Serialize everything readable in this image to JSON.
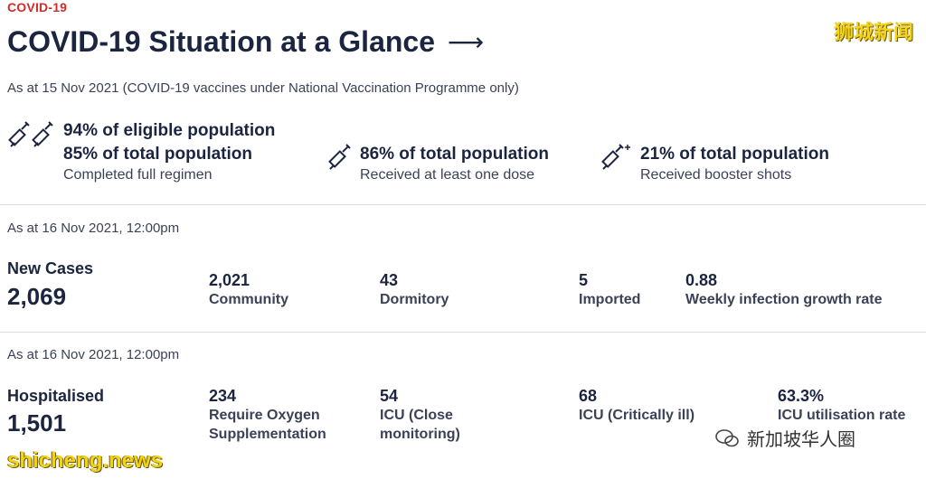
{
  "header": {
    "tag": "COVID-19",
    "title": "COVID-19 Situation at a Glance",
    "arrow": "⟶",
    "subtitle": "As at 15 Nov 2021 (COVID-19 vaccines under National Vaccination Programme only)"
  },
  "vaccination": [
    {
      "lines": [
        "94% of eligible population",
        "85% of total population"
      ],
      "desc": "Completed full regimen",
      "icon": "double-syringe-icon"
    },
    {
      "lines": [
        "86% of total population"
      ],
      "desc": "Received at least one dose",
      "icon": "syringe-icon"
    },
    {
      "lines": [
        "21% of total population"
      ],
      "desc": "Received booster shots",
      "icon": "syringe-plus-icon"
    }
  ],
  "cases": {
    "as_at": "As at 16 Nov 2021, 12:00pm",
    "label": "New Cases",
    "value": "2,069",
    "stats": [
      {
        "value": "2,021",
        "label": "Community"
      },
      {
        "value": "43",
        "label": "Dormitory"
      },
      {
        "value": "5",
        "label": "Imported"
      },
      {
        "value": "0.88",
        "label": "Weekly infection growth rate"
      }
    ]
  },
  "hospital": {
    "as_at": "As at 16 Nov 2021, 12:00pm",
    "label": "Hospitalised",
    "value": "1,501",
    "stats": [
      {
        "value": "234",
        "label_lines": [
          "Require Oxygen",
          "Supplementation"
        ]
      },
      {
        "value": "54",
        "label_lines": [
          "ICU (Close",
          "monitoring)"
        ]
      },
      {
        "value": "68",
        "label_lines": [
          "ICU (Critically ill)"
        ]
      },
      {
        "value": "63.3%",
        "label_lines": [
          "ICU utilisation rate"
        ]
      }
    ]
  },
  "watermarks": {
    "top_right": "狮城新闻",
    "bottom_left": "shicheng.news",
    "bottom_right": "新加坡华人圈"
  },
  "colors": {
    "accent": "#d22b2b",
    "text": "#1b2540",
    "watermark": "#f4d21a"
  }
}
